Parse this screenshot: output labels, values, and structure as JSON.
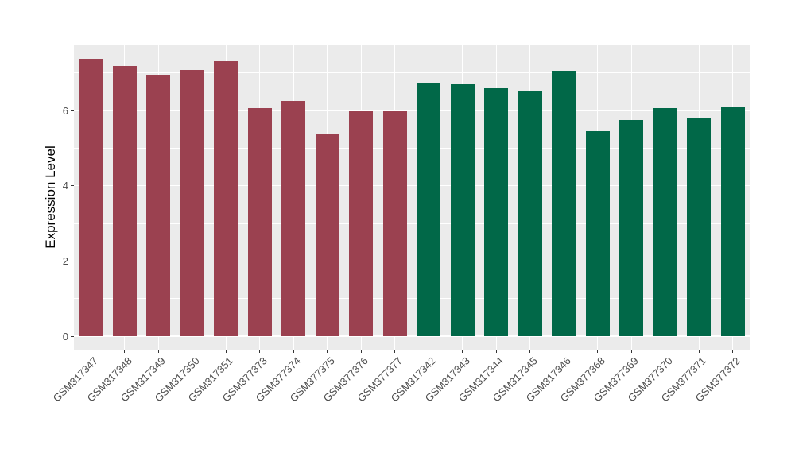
{
  "chart_data": {
    "type": "bar",
    "title": "",
    "xlabel": "",
    "ylabel": "Expression Level",
    "categories": [
      "GSM317347",
      "GSM317348",
      "GSM317349",
      "GSM317350",
      "GSM317351",
      "GSM377373",
      "GSM377374",
      "GSM377375",
      "GSM377376",
      "GSM377377",
      "GSM317342",
      "GSM317343",
      "GSM317344",
      "GSM317345",
      "GSM317346",
      "GSM377368",
      "GSM377369",
      "GSM377370",
      "GSM377371",
      "GSM377372"
    ],
    "values": [
      7.37,
      7.18,
      6.95,
      7.07,
      7.32,
      6.07,
      6.26,
      5.38,
      5.98,
      5.98,
      6.75,
      6.7,
      6.59,
      6.51,
      7.06,
      5.45,
      5.74,
      6.07,
      5.78,
      6.08
    ],
    "bar_colors": [
      "#9B4150",
      "#9B4150",
      "#9B4150",
      "#9B4150",
      "#9B4150",
      "#9B4150",
      "#9B4150",
      "#9B4150",
      "#9B4150",
      "#9B4150",
      "#016848",
      "#016848",
      "#016848",
      "#016848",
      "#016848",
      "#016848",
      "#016848",
      "#016848",
      "#016848",
      "#016848"
    ],
    "yticks": [
      0,
      2,
      4,
      6
    ],
    "minor_gridlines": [
      1,
      3,
      5,
      7
    ],
    "ylim": [
      0,
      7.74
    ],
    "grid": "on",
    "legend_position": "none",
    "panel_bg": "#EBEBEB",
    "grid_color": "#FFFFFF",
    "tick_color": "#333333",
    "axis_text_color": "#4D4D4D"
  }
}
